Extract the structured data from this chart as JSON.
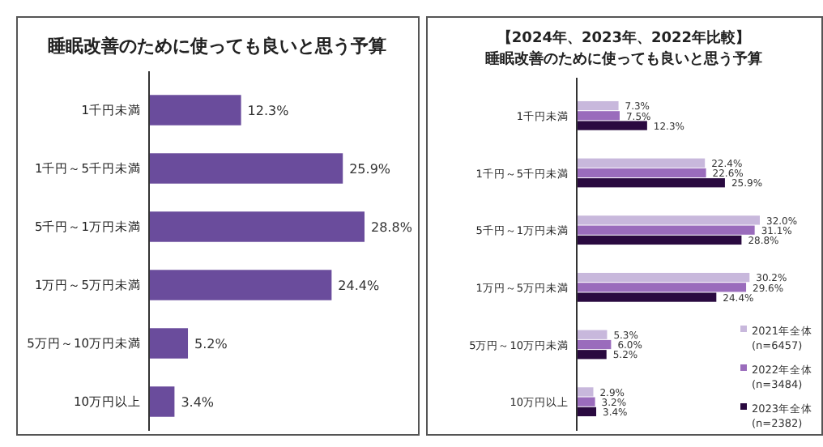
{
  "chart_data": [
    {
      "type": "bar",
      "orientation": "horizontal",
      "title": "睡眠改善のために使っても良いと思う予算",
      "categories": [
        "1千円未満",
        "1千円～5千円未満",
        "5千円～1万円未満",
        "1万円～5万円未満",
        "5万円～10万円未満",
        "10万円以上"
      ],
      "values": [
        12.3,
        25.9,
        28.8,
        24.4,
        5.2,
        3.4
      ],
      "color": "#6a4c9c",
      "data_labels": true,
      "value_labels": [
        "12.3%",
        "25.9%",
        "28.8%",
        "24.4%",
        "5.2%",
        "3.4%"
      ],
      "legend": false
    },
    {
      "type": "bar",
      "orientation": "horizontal",
      "title": "【2024年、2023年、2022年比較】",
      "subtitle": "睡眠改善のために使っても良いと思う予算",
      "categories": [
        "1千円未満",
        "1千円～5千円未満",
        "5千円～1万円未満",
        "1万円～5万円未満",
        "5万円～10万円未満",
        "10万円以上"
      ],
      "series": [
        {
          "name": "2021年全体\n(n=6457)",
          "color": "#c8b8dc",
          "values": [
            7.3,
            22.4,
            32.0,
            30.2,
            5.3,
            2.9
          ],
          "value_labels": [
            "7.3%",
            "22.4%",
            "32.0%",
            "30.2%",
            "5.3%",
            "2.9%"
          ]
        },
        {
          "name": "2022年全体\n(n=3484)",
          "color": "#9a6cbc",
          "values": [
            7.5,
            22.6,
            31.1,
            29.6,
            6.0,
            3.2
          ],
          "value_labels": [
            "7.5%",
            "22.6%",
            "31.1%",
            "29.6%",
            "6.0%",
            "3.2%"
          ]
        },
        {
          "name": "2023年全体\n(n=2382)",
          "color": "#2a0a40",
          "values": [
            12.3,
            25.9,
            28.8,
            24.4,
            5.2,
            3.4
          ],
          "value_labels": [
            "12.3%",
            "25.9%",
            "28.8%",
            "24.4%",
            "5.2%",
            "3.4%"
          ]
        }
      ],
      "data_labels": true,
      "legend": "bottom right"
    }
  ]
}
